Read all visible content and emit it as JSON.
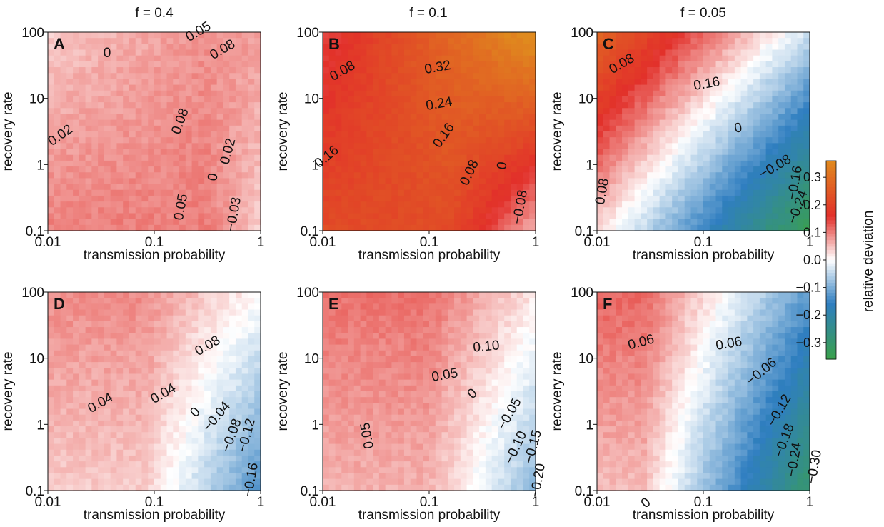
{
  "colors": {
    "neg_strong": "#3aa14a",
    "neg_mid": "#2f7ec0",
    "neutral": "#ffffff",
    "pos_mid": "#e2302a",
    "pos_strong": "#e08a1e"
  },
  "shared": {
    "xlabel": "transmission probability",
    "ylabel": "recovery rate",
    "xticks": [
      "0.01",
      "0.1",
      "1"
    ],
    "yticks": [
      "0.1",
      "1",
      "10",
      "100"
    ]
  },
  "columns": [
    "f = 0.4",
    "f = 0.1",
    "f = 0.05"
  ],
  "colorbar": {
    "label": "relative deviation",
    "ticks": [
      "0.3",
      "0.2",
      "0.1",
      "0.0",
      "−0.1",
      "−0.2",
      "−0.3"
    ]
  },
  "chart_data": [
    {
      "type": "heatmap",
      "panel": "A",
      "xlabel": "transmission probability",
      "ylabel": "recovery rate",
      "xlim": [
        0.01,
        1
      ],
      "ylim": [
        0.1,
        100
      ],
      "xscale": "log",
      "yscale": "log",
      "contour_labels": [
        "0",
        "0.05",
        "0.08",
        "0.02",
        "0.08",
        "0.05",
        "0",
        "0.02",
        "−0.03"
      ]
    },
    {
      "type": "heatmap",
      "panel": "B",
      "xlabel": "transmission probability",
      "ylabel": "recovery rate",
      "xlim": [
        0.01,
        1
      ],
      "ylim": [
        0.1,
        100
      ],
      "xscale": "log",
      "yscale": "log",
      "contour_labels": [
        "0.08",
        "0.32",
        "0.24",
        "0.16",
        "0.16",
        "0.08",
        "0",
        "−0.08"
      ]
    },
    {
      "type": "heatmap",
      "panel": "C",
      "xlabel": "transmission probability",
      "ylabel": "recovery rate",
      "xlim": [
        0.01,
        1
      ],
      "ylim": [
        0.1,
        100
      ],
      "xscale": "log",
      "yscale": "log",
      "contour_labels": [
        "0.08",
        "0.16",
        "0",
        "−0.08",
        "−0.16",
        "−0.24",
        "0.08"
      ]
    },
    {
      "type": "heatmap",
      "panel": "D",
      "xlabel": "transmission probability",
      "ylabel": "recovery rate",
      "xlim": [
        0.01,
        1
      ],
      "ylim": [
        0.1,
        100
      ],
      "xscale": "log",
      "yscale": "log",
      "contour_labels": [
        "0.08",
        "0.04",
        "0.04",
        "0",
        "−0.04",
        "−0.08",
        "−0.12",
        "−0.16"
      ]
    },
    {
      "type": "heatmap",
      "panel": "E",
      "xlabel": "transmission probability",
      "ylabel": "recovery rate",
      "xlim": [
        0.01,
        1
      ],
      "ylim": [
        0.1,
        100
      ],
      "xscale": "log",
      "yscale": "log",
      "contour_labels": [
        "0.10",
        "0.05",
        "0",
        "0.05",
        "−0.05",
        "−0.10",
        "−0.15",
        "−0.20"
      ]
    },
    {
      "type": "heatmap",
      "panel": "F",
      "xlabel": "transmission probability",
      "ylabel": "recovery rate",
      "xlim": [
        0.01,
        1
      ],
      "ylim": [
        0.1,
        100
      ],
      "xscale": "log",
      "yscale": "log",
      "contour_labels": [
        "0.06",
        "0.06",
        "−0.06",
        "−0.12",
        "−0.18",
        "−0.24",
        "−0.30",
        "0"
      ]
    }
  ]
}
